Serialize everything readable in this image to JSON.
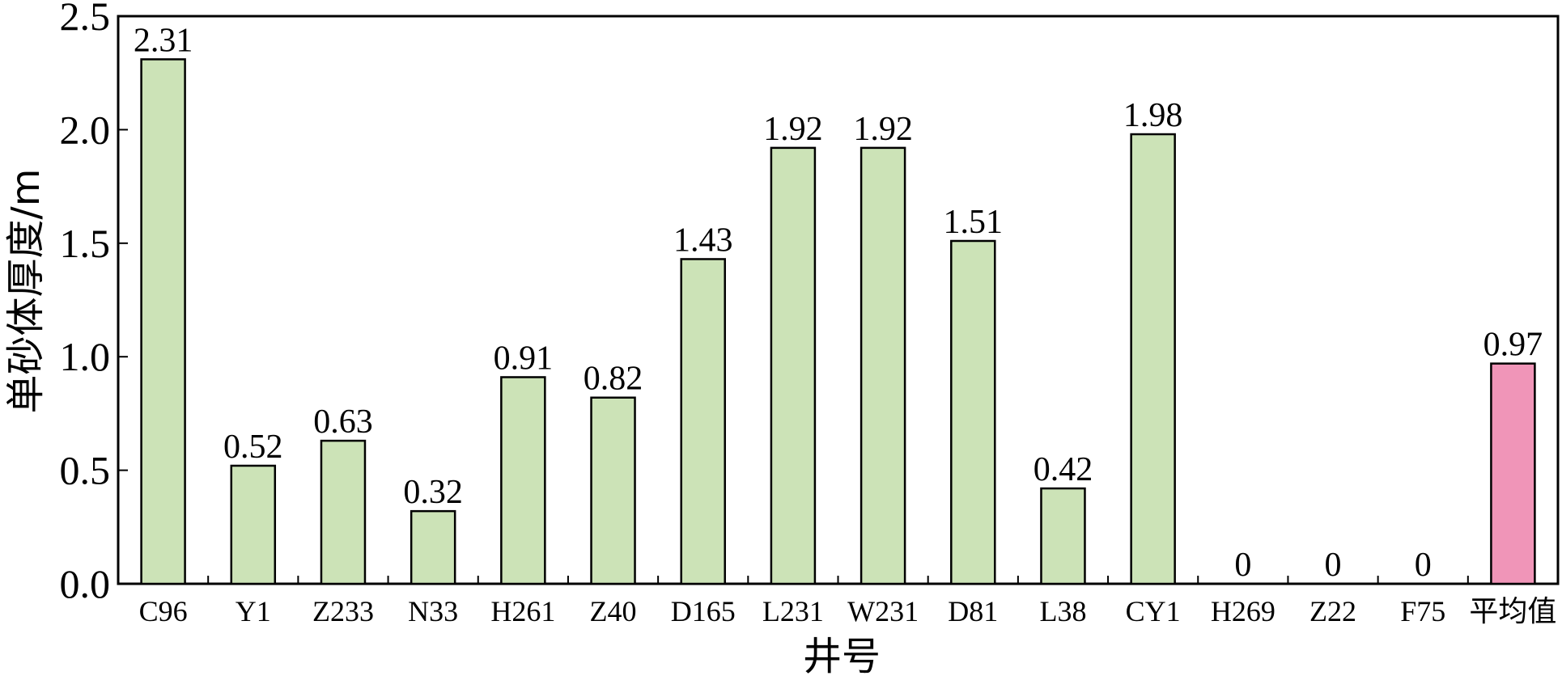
{
  "chart_data": {
    "type": "bar",
    "title": "",
    "xlabel": "井号",
    "ylabel": "单砂体厚度/m",
    "categories": [
      "C96",
      "Y1",
      "Z233",
      "N33",
      "H261",
      "Z40",
      "D165",
      "L231",
      "W231",
      "D81",
      "L38",
      "CY1",
      "H269",
      "Z22",
      "F75",
      "平均值"
    ],
    "values": [
      2.31,
      0.52,
      0.63,
      0.32,
      0.91,
      0.82,
      1.43,
      1.92,
      1.92,
      1.51,
      0.42,
      1.98,
      0,
      0,
      0,
      0.97
    ],
    "value_labels": [
      "2.31",
      "0.52",
      "0.63",
      "0.32",
      "0.91",
      "0.82",
      "1.43",
      "1.92",
      "1.92",
      "1.51",
      "0.42",
      "1.98",
      "0",
      "0",
      "0",
      "0.97"
    ],
    "ylim": [
      0,
      2.5
    ],
    "yticks": [
      "0.0",
      "0.5",
      "1.0",
      "1.5",
      "2.0",
      "2.5"
    ],
    "grid": false,
    "legend": "none",
    "colors": {
      "bar": "#cce3b7",
      "average_bar": "#f095b8",
      "stroke": "#000000"
    }
  }
}
